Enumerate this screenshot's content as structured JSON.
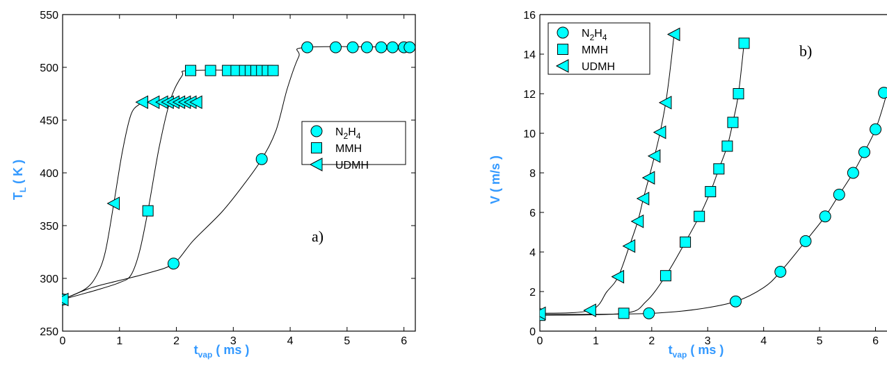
{
  "colors": {
    "marker_fill": "#00FFFF",
    "axis_label": "#3399FF",
    "curve": "#000000"
  },
  "chart_data": [
    {
      "type": "line",
      "panel_label": "a)",
      "xlabel": {
        "main": "t",
        "sub": "vap",
        "unit": " ( ms )"
      },
      "ylabel": {
        "main": "T",
        "sub": "L",
        "unit": "  ( K )"
      },
      "xlim": [
        0,
        6.2
      ],
      "ylim": [
        250,
        550
      ],
      "xticks": [
        "0",
        "1",
        "2",
        "3",
        "4",
        "5",
        "6"
      ],
      "yticks": [
        "250",
        "300",
        "350",
        "400",
        "450",
        "500",
        "550"
      ],
      "legend_position": "right-middle",
      "series": [
        {
          "name": "N2H4",
          "name_parts": [
            "N",
            "2",
            "H",
            "4"
          ],
          "marker": "circle",
          "curve_x": [
            0,
            0.5,
            1.0,
            1.5,
            1.95,
            2.3,
            2.8,
            3.2,
            3.5,
            3.75,
            3.95,
            4.15,
            4.3,
            6.2
          ],
          "curve_y": [
            280,
            291,
            298,
            305,
            314,
            336,
            363,
            390,
            413,
            440,
            480,
            510,
            519,
            519
          ],
          "points_x": [
            0,
            1.95,
            3.5,
            4.3,
            4.8,
            5.1,
            5.35,
            5.6,
            5.8,
            6.0,
            6.1
          ],
          "points_y": [
            280,
            314,
            413,
            519,
            519,
            519,
            519,
            519,
            519,
            519,
            519
          ]
        },
        {
          "name": "MMH",
          "name_parts": [
            "MMH"
          ],
          "marker": "square",
          "curve_x": [
            0,
            0.6,
            1.0,
            1.2,
            1.35,
            1.5,
            1.7,
            1.9,
            2.1,
            2.25,
            3.7
          ],
          "curve_y": [
            280,
            289,
            296,
            303,
            325,
            364,
            425,
            470,
            492,
            497,
            497
          ],
          "points_x": [
            0,
            1.5,
            2.25,
            2.6,
            2.9,
            3.05,
            3.2,
            3.3,
            3.4,
            3.5,
            3.6,
            3.7
          ],
          "points_y": [
            280,
            364,
            497,
            497,
            497,
            497,
            497,
            497,
            497,
            497,
            497,
            497
          ]
        },
        {
          "name": "UDMH",
          "name_parts": [
            "UDMH"
          ],
          "marker": "triangle-left",
          "curve_x": [
            0,
            0.4,
            0.6,
            0.75,
            0.9,
            1.05,
            1.2,
            1.35,
            1.45,
            2.4
          ],
          "curve_y": [
            280,
            290,
            303,
            325,
            371,
            420,
            455,
            465,
            467,
            467
          ],
          "points_x": [
            0,
            0.9,
            1.4,
            1.6,
            1.75,
            1.85,
            1.95,
            2.05,
            2.15,
            2.25,
            2.35
          ],
          "points_y": [
            280,
            371,
            467,
            467,
            467,
            467,
            467,
            467,
            467,
            467,
            467
          ]
        }
      ]
    },
    {
      "type": "line",
      "panel_label": "b)",
      "xlabel": {
        "main": "t",
        "sub": "vap",
        "unit": " ( ms )"
      },
      "ylabel": {
        "main": "V",
        "sub": "",
        "unit": "  ( m/s )"
      },
      "xlim": [
        0,
        6.2
      ],
      "ylim": [
        0,
        16
      ],
      "xticks": [
        "0",
        "1",
        "2",
        "3",
        "4",
        "5",
        "6"
      ],
      "yticks": [
        "0",
        "2",
        "4",
        "6",
        "8",
        "10",
        "12",
        "14",
        "16"
      ],
      "legend_position": "top-left",
      "series": [
        {
          "name": "N2H4",
          "name_parts": [
            "N",
            "2",
            "H",
            "4"
          ],
          "marker": "circle",
          "curve_x": [
            0,
            1.0,
            2.0,
            2.8,
            3.5,
            4.0,
            4.3,
            4.75,
            5.1,
            5.35,
            5.6,
            5.8,
            6.0,
            6.15,
            6.25
          ],
          "curve_y": [
            0.85,
            0.85,
            0.9,
            1.1,
            1.5,
            2.2,
            3.0,
            4.55,
            5.8,
            6.9,
            8.0,
            9.05,
            10.2,
            11.5,
            12.6
          ],
          "points_x": [
            0,
            1.95,
            3.5,
            4.3,
            4.75,
            5.1,
            5.35,
            5.6,
            5.8,
            6.0,
            6.15
          ],
          "points_y": [
            0.85,
            0.9,
            1.5,
            3.0,
            4.55,
            5.8,
            6.9,
            8.0,
            9.05,
            10.2,
            12.05
          ]
        },
        {
          "name": "MMH",
          "name_parts": [
            "MMH"
          ],
          "marker": "square",
          "curve_x": [
            0,
            1.5,
            1.9,
            2.25,
            2.6,
            2.85,
            3.05,
            3.2,
            3.35,
            3.45,
            3.55,
            3.65
          ],
          "curve_y": [
            0.8,
            0.9,
            1.5,
            2.8,
            4.5,
            5.8,
            7.05,
            8.2,
            9.35,
            10.55,
            12.0,
            14.55
          ],
          "points_x": [
            0,
            1.5,
            2.25,
            2.6,
            2.85,
            3.05,
            3.2,
            3.35,
            3.45,
            3.55,
            3.65
          ],
          "points_y": [
            0.8,
            0.9,
            2.8,
            4.5,
            5.8,
            7.05,
            8.2,
            9.35,
            10.55,
            12.0,
            14.55
          ]
        },
        {
          "name": "UDMH",
          "name_parts": [
            "UDMH"
          ],
          "marker": "triangle-left",
          "curve_x": [
            0,
            0.9,
            1.2,
            1.4,
            1.6,
            1.75,
            1.85,
            1.95,
            2.05,
            2.15,
            2.25,
            2.32,
            2.4
          ],
          "curve_y": [
            0.9,
            1.05,
            2.0,
            2.75,
            4.3,
            5.55,
            6.7,
            7.75,
            8.85,
            10.05,
            11.55,
            13.0,
            15.0
          ],
          "points_x": [
            0,
            0.9,
            1.4,
            1.6,
            1.75,
            1.85,
            1.95,
            2.05,
            2.15,
            2.25,
            2.4
          ],
          "points_y": [
            0.9,
            1.05,
            2.75,
            4.3,
            5.55,
            6.7,
            7.75,
            8.85,
            10.05,
            11.55,
            15.0
          ]
        }
      ]
    }
  ]
}
